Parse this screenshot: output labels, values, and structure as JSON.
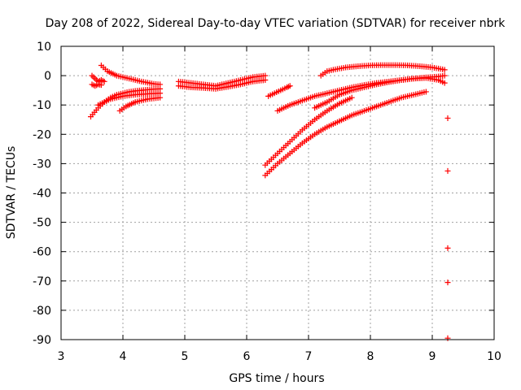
{
  "chart_data": {
    "type": "scatter",
    "title": "Day 208 of 2022, Sidereal Day-to-day VTEC variation (SDTVAR) for receiver nbrk",
    "xlabel": "GPS time / hours",
    "ylabel": "SDTVAR / TECUs",
    "xlim": [
      3,
      10
    ],
    "ylim": [
      -90,
      10
    ],
    "xticks": [
      "3",
      "4",
      "5",
      "6",
      "7",
      "8",
      "9",
      "10"
    ],
    "yticks": [
      "10",
      "0",
      "-10",
      "-20",
      "-30",
      "-40",
      "-50",
      "-60",
      "-70",
      "-80",
      "-90"
    ],
    "grid": true,
    "marker": "plus",
    "color": "#ff0000",
    "series": [
      {
        "x": [
          3.5,
          3.55,
          3.6,
          3.65,
          3.7
        ],
        "y": [
          0,
          -1,
          -2,
          -1.5,
          -2
        ]
      },
      {
        "x": [
          3.5,
          3.55,
          3.6,
          3.65
        ],
        "y": [
          -3,
          -3.5,
          -3,
          -3.2
        ]
      },
      {
        "x": [
          3.48,
          3.6,
          3.7,
          3.8,
          3.9,
          4.0,
          4.1,
          4.2,
          4.3,
          4.4,
          4.5,
          4.6
        ],
        "y": [
          -14,
          -11,
          -9,
          -7.5,
          -6.5,
          -6,
          -5.5,
          -5.2,
          -5,
          -4.8,
          -4.6,
          -4.5
        ]
      },
      {
        "x": [
          3.6,
          3.8,
          4.0,
          4.2,
          4.4,
          4.6
        ],
        "y": [
          -10,
          -8,
          -7,
          -6.5,
          -6.2,
          -6
        ]
      },
      {
        "x": [
          3.65,
          3.75,
          3.9,
          4.1,
          4.3,
          4.5,
          4.6
        ],
        "y": [
          3.5,
          1.5,
          0,
          -1,
          -2,
          -2.8,
          -3
        ]
      },
      {
        "x": [
          3.95,
          4.05,
          4.2,
          4.4,
          4.6
        ],
        "y": [
          -12,
          -10.5,
          -9,
          -8,
          -7.5
        ]
      },
      {
        "x": [
          4.9,
          5.1,
          5.3,
          5.5,
          5.7,
          5.9,
          6.1,
          6.3
        ],
        "y": [
          -2,
          -2.5,
          -3,
          -3.5,
          -2.5,
          -1.5,
          -0.5,
          0
        ]
      },
      {
        "x": [
          4.9,
          5.1,
          5.3,
          5.5,
          5.7,
          5.9,
          6.1,
          6.3
        ],
        "y": [
          -3.5,
          -4,
          -4.2,
          -4.5,
          -3.8,
          -3,
          -2,
          -1.5
        ]
      },
      {
        "x": [
          6.35,
          6.45,
          6.55,
          6.65,
          6.7
        ],
        "y": [
          -7,
          -6,
          -5,
          -4,
          -3.5
        ]
      },
      {
        "x": [
          6.5,
          6.7,
          6.9,
          7.1,
          7.3,
          7.5,
          7.7,
          7.9,
          8.1,
          8.3,
          8.5,
          8.7,
          8.9,
          9.1,
          9.2
        ],
        "y": [
          -12,
          -10,
          -8.5,
          -7,
          -6,
          -5,
          -4,
          -3.2,
          -2.5,
          -2,
          -1.5,
          -1,
          -0.6,
          -0.3,
          0
        ]
      },
      {
        "x": [
          7.2,
          7.3,
          7.4,
          7.6,
          7.8,
          8.0,
          8.2,
          8.4,
          8.6,
          8.8,
          9.0,
          9.2
        ],
        "y": [
          0,
          1.5,
          2,
          2.8,
          3.2,
          3.5,
          3.6,
          3.6,
          3.5,
          3.2,
          2.8,
          2
        ]
      },
      {
        "x": [
          7.1,
          7.3,
          7.5,
          7.7,
          7.9,
          8.1,
          8.3,
          8.5,
          8.7,
          8.9,
          9.1,
          9.2
        ],
        "y": [
          -11,
          -9,
          -6.5,
          -5,
          -4,
          -3,
          -2.2,
          -1.5,
          -1,
          -0.8,
          -1.5,
          -2.5
        ]
      },
      {
        "x": [
          6.3,
          6.5,
          6.7,
          6.9,
          7.1,
          7.3,
          7.5,
          7.7
        ],
        "y": [
          -30.5,
          -26.5,
          -22.5,
          -18.5,
          -15,
          -12,
          -9.5,
          -7.5
        ]
      },
      {
        "x": [
          6.3,
          6.5,
          6.7,
          6.9,
          7.1,
          7.3,
          7.5,
          7.7,
          7.9,
          8.1,
          8.3,
          8.5,
          8.7,
          8.9
        ],
        "y": [
          -34,
          -30,
          -26.5,
          -23,
          -20,
          -17.5,
          -15.5,
          -13.5,
          -12,
          -10.5,
          -9,
          -7.5,
          -6.5,
          -5.5
        ]
      },
      {
        "x": [
          9.25,
          9.25,
          9.25,
          9.25,
          9.25
        ],
        "y": [
          -14.5,
          -32.5,
          -58.8,
          -70.5,
          -89.5
        ]
      }
    ]
  }
}
